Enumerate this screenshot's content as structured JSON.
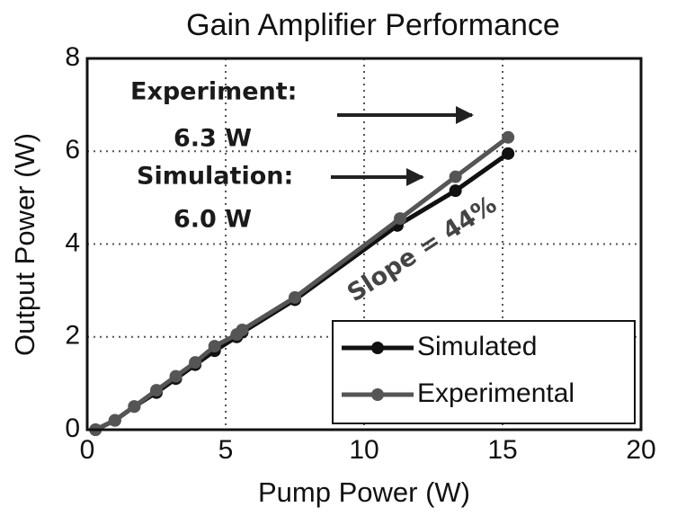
{
  "chart_data": {
    "type": "line",
    "title": "Gain Amplifier Performance",
    "x_label": "Pump Power (W)",
    "y_label": "Output Power (W)",
    "xlim": [
      0,
      20
    ],
    "xticks": [
      0,
      5,
      10,
      15,
      20
    ],
    "ylim": [
      0,
      8
    ],
    "yticks": [
      0,
      2,
      4,
      6,
      8
    ],
    "grid": true,
    "legend": "lower right",
    "series": [
      {
        "name": "Simulated",
        "color": "#111111",
        "x": [
          0.3,
          1.0,
          1.7,
          2.5,
          3.2,
          3.9,
          4.6,
          5.4,
          5.6,
          7.5,
          11.2,
          13.3,
          15.2
        ],
        "values": [
          0.0,
          0.2,
          0.5,
          0.8,
          1.1,
          1.4,
          1.7,
          2.0,
          2.1,
          2.8,
          4.4,
          5.15,
          5.95
        ]
      },
      {
        "name": "Experimental",
        "color": "#555555",
        "x": [
          0.3,
          1.0,
          1.7,
          2.5,
          3.2,
          3.9,
          4.6,
          5.4,
          5.6,
          7.5,
          11.3,
          13.3,
          15.2
        ],
        "values": [
          0.0,
          0.2,
          0.5,
          0.85,
          1.15,
          1.45,
          1.8,
          2.05,
          2.15,
          2.85,
          4.55,
          5.45,
          6.3
        ]
      }
    ],
    "annotations": [
      "Experiment:",
      "6.3 W",
      "Simulation:",
      "6.0 W",
      "Slope = 44%"
    ]
  }
}
